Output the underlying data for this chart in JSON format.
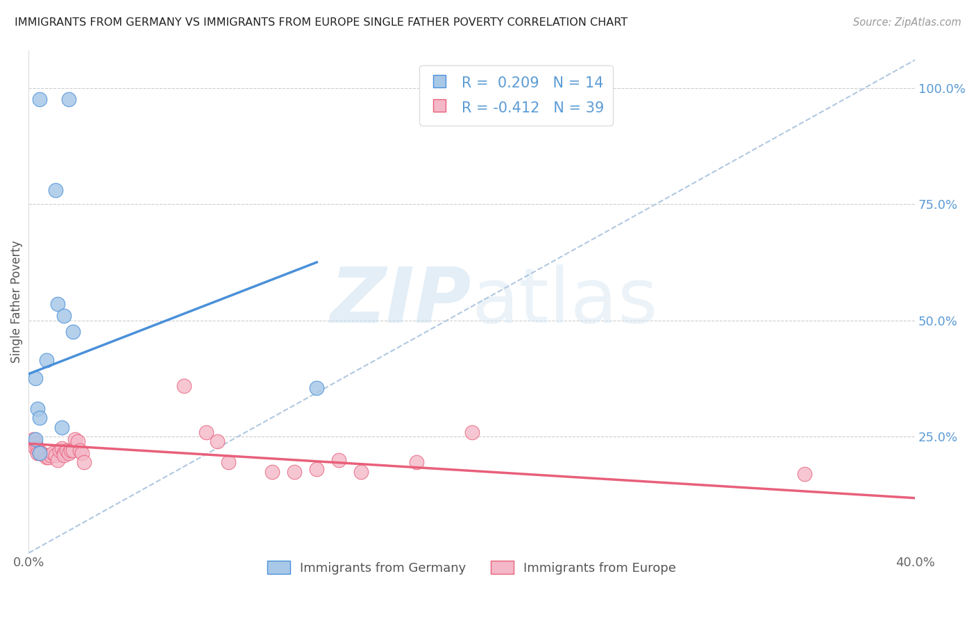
{
  "title": "IMMIGRANTS FROM GERMANY VS IMMIGRANTS FROM EUROPE SINGLE FATHER POVERTY CORRELATION CHART",
  "source": "Source: ZipAtlas.com",
  "ylabel": "Single Father Poverty",
  "right_yticks": [
    "100.0%",
    "75.0%",
    "50.0%",
    "25.0%"
  ],
  "right_ytick_vals": [
    1.0,
    0.75,
    0.5,
    0.25
  ],
  "legend_blue_R": "R =  0.209",
  "legend_blue_N": "N = 14",
  "legend_pink_R": "R = -0.412",
  "legend_pink_N": "N = 39",
  "legend_label_blue": "Immigrants from Germany",
  "legend_label_pink": "Immigrants from Europe",
  "watermark_ZIP": "ZIP",
  "watermark_atlas": "atlas",
  "blue_color": "#a8c8e8",
  "pink_color": "#f4b8c8",
  "blue_line_color": "#4a90d9",
  "pink_line_color": "#e8607a",
  "dashed_line_color": "#b0c8e0",
  "scatter_blue": [
    [
      0.005,
      0.975
    ],
    [
      0.018,
      0.975
    ],
    [
      0.012,
      0.78
    ],
    [
      0.013,
      0.535
    ],
    [
      0.016,
      0.51
    ],
    [
      0.02,
      0.475
    ],
    [
      0.008,
      0.415
    ],
    [
      0.003,
      0.375
    ],
    [
      0.004,
      0.31
    ],
    [
      0.005,
      0.29
    ],
    [
      0.015,
      0.27
    ],
    [
      0.003,
      0.245
    ],
    [
      0.13,
      0.355
    ],
    [
      0.005,
      0.215
    ]
  ],
  "scatter_pink": [
    [
      0.002,
      0.245
    ],
    [
      0.003,
      0.235
    ],
    [
      0.003,
      0.225
    ],
    [
      0.004,
      0.225
    ],
    [
      0.004,
      0.215
    ],
    [
      0.005,
      0.215
    ],
    [
      0.006,
      0.215
    ],
    [
      0.007,
      0.21
    ],
    [
      0.008,
      0.205
    ],
    [
      0.009,
      0.205
    ],
    [
      0.01,
      0.21
    ],
    [
      0.011,
      0.215
    ],
    [
      0.012,
      0.21
    ],
    [
      0.013,
      0.2
    ],
    [
      0.014,
      0.22
    ],
    [
      0.015,
      0.225
    ],
    [
      0.016,
      0.215
    ],
    [
      0.016,
      0.21
    ],
    [
      0.017,
      0.22
    ],
    [
      0.018,
      0.215
    ],
    [
      0.019,
      0.22
    ],
    [
      0.02,
      0.22
    ],
    [
      0.021,
      0.245
    ],
    [
      0.022,
      0.24
    ],
    [
      0.023,
      0.22
    ],
    [
      0.024,
      0.215
    ],
    [
      0.025,
      0.195
    ],
    [
      0.07,
      0.36
    ],
    [
      0.08,
      0.26
    ],
    [
      0.085,
      0.24
    ],
    [
      0.09,
      0.195
    ],
    [
      0.11,
      0.175
    ],
    [
      0.12,
      0.175
    ],
    [
      0.13,
      0.18
    ],
    [
      0.14,
      0.2
    ],
    [
      0.15,
      0.175
    ],
    [
      0.175,
      0.195
    ],
    [
      0.2,
      0.26
    ],
    [
      0.35,
      0.17
    ]
  ],
  "xlim": [
    0,
    0.4
  ],
  "ylim": [
    0,
    1.08
  ],
  "blue_trend_x": [
    0.0,
    0.13
  ],
  "blue_trend_y": [
    0.385,
    0.625
  ],
  "pink_trend_x": [
    0.0,
    0.4
  ],
  "pink_trend_y": [
    0.235,
    0.118
  ],
  "dashed_trend_x": [
    0.0,
    0.4
  ],
  "dashed_trend_y": [
    0.0,
    1.06
  ]
}
